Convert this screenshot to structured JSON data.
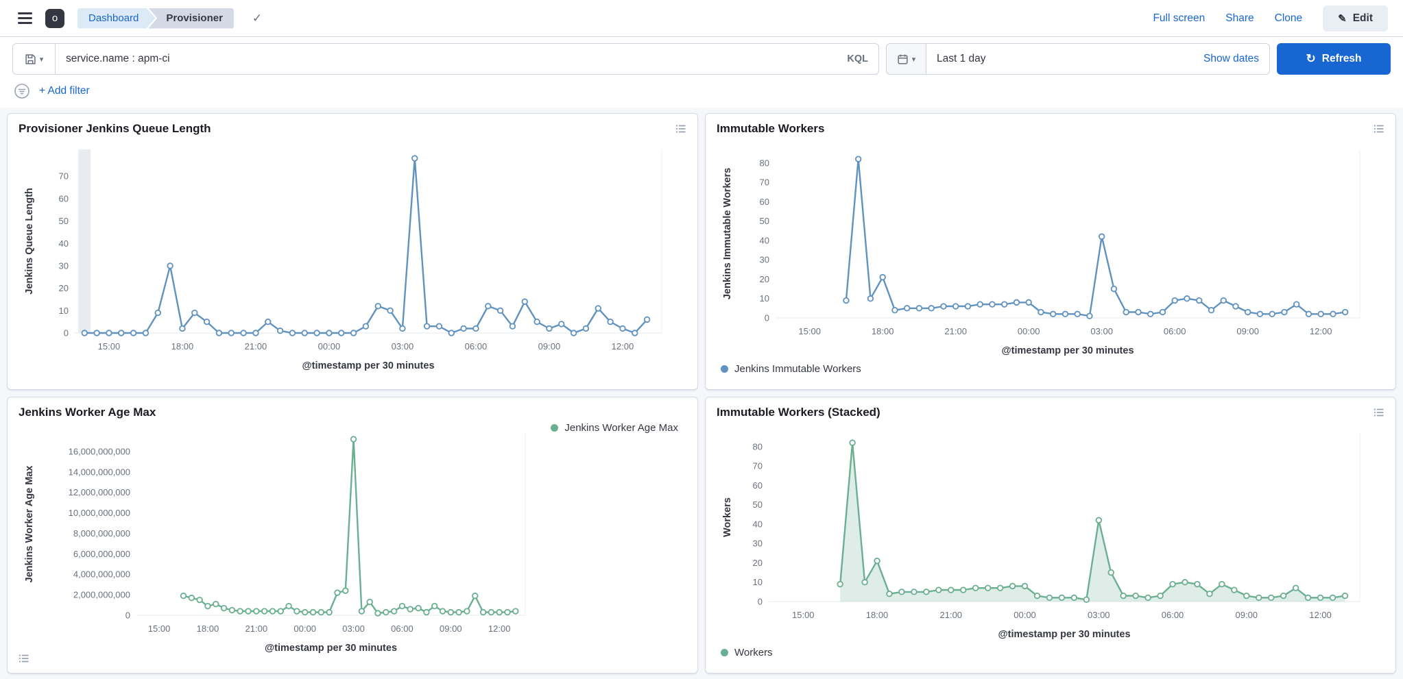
{
  "header": {
    "space_initial": "o",
    "breadcrumbs": [
      {
        "label": "Dashboard"
      },
      {
        "label": "Provisioner"
      }
    ],
    "actions": {
      "full_screen": "Full screen",
      "share": "Share",
      "clone": "Clone",
      "edit": "Edit"
    }
  },
  "query_bar": {
    "query": "service.name : apm-ci",
    "language": "KQL",
    "time_range": "Last 1 day",
    "show_dates_label": "Show dates",
    "refresh_label": "Refresh"
  },
  "filter_bar": {
    "add_filter_label": "+ Add filter"
  },
  "colors": {
    "primary": "#1866D1",
    "chart_blue": "#6092C0",
    "chart_green": "#6BAF92"
  },
  "chart_data": [
    {
      "type": "line",
      "title": "Provisioner Jenkins Queue Length",
      "xlabel": "@timestamp per 30 minutes",
      "ylabel": "Jenkins Queue Length",
      "color": "#6092C0",
      "fill": false,
      "partial_band": true,
      "legend": null,
      "legend_position": null,
      "ylim": [
        0,
        82
      ],
      "yticks": [
        0,
        10,
        20,
        30,
        40,
        50,
        60,
        70
      ],
      "x_start": "14:00",
      "x_interval_minutes": 30,
      "xtick_labels": [
        "15:00",
        "18:00",
        "21:00",
        "00:00",
        "03:00",
        "06:00",
        "09:00",
        "12:00"
      ],
      "xtick_indices": [
        2,
        8,
        14,
        20,
        26,
        32,
        38,
        44
      ],
      "values": [
        0,
        0,
        0,
        0,
        0,
        0,
        9,
        30,
        2,
        9,
        5,
        0,
        0,
        0,
        0,
        5,
        1,
        0,
        0,
        0,
        0,
        0,
        0,
        3,
        12,
        10,
        2,
        78,
        3,
        3,
        0,
        2,
        2,
        12,
        10,
        3,
        14,
        5,
        2,
        4,
        0,
        2,
        11,
        5,
        2,
        0,
        6
      ]
    },
    {
      "type": "line",
      "title": "Immutable Workers",
      "xlabel": "@timestamp per 30 minutes",
      "ylabel": "Jenkins Immutable Workers",
      "color": "#6092C0",
      "fill": false,
      "partial_band": false,
      "legend": "Jenkins Immutable Workers",
      "legend_position": "bottom-left",
      "ylim": [
        0,
        87
      ],
      "yticks": [
        0,
        10,
        20,
        30,
        40,
        50,
        60,
        70,
        80
      ],
      "x_start": "14:00",
      "x_interval_minutes": 30,
      "xtick_labels": [
        "15:00",
        "18:00",
        "21:00",
        "00:00",
        "03:00",
        "06:00",
        "09:00",
        "12:00"
      ],
      "xtick_indices": [
        2,
        8,
        14,
        20,
        26,
        32,
        38,
        44
      ],
      "values": [
        null,
        null,
        null,
        null,
        null,
        9,
        82,
        10,
        21,
        4,
        5,
        5,
        5,
        6,
        6,
        6,
        7,
        7,
        7,
        8,
        8,
        3,
        2,
        2,
        2,
        1,
        42,
        15,
        3,
        3,
        2,
        3,
        9,
        10,
        9,
        4,
        9,
        6,
        3,
        2,
        2,
        3,
        7,
        2,
        2,
        2,
        3
      ]
    },
    {
      "type": "line",
      "title": "Jenkins Worker Age Max",
      "xlabel": "@timestamp per 30 minutes",
      "ylabel": "Jenkins Worker Age Max",
      "color": "#6BAF92",
      "fill": false,
      "partial_band": false,
      "legend": "Jenkins Worker Age Max",
      "legend_position": "top-right",
      "ylim": [
        0,
        17800000000
      ],
      "yticks": [
        0,
        2000000000,
        4000000000,
        6000000000,
        8000000000,
        10000000000,
        12000000000,
        14000000000,
        16000000000
      ],
      "x_start": "14:00",
      "x_interval_minutes": 30,
      "xtick_labels": [
        "15:00",
        "18:00",
        "21:00",
        "00:00",
        "03:00",
        "06:00",
        "09:00",
        "12:00"
      ],
      "xtick_indices": [
        2,
        8,
        14,
        20,
        26,
        32,
        38,
        44
      ],
      "values": [
        null,
        null,
        null,
        null,
        null,
        1900000000,
        1700000000,
        1500000000,
        900000000,
        1100000000,
        700000000,
        500000000,
        400000000,
        400000000,
        400000000,
        400000000,
        400000000,
        400000000,
        900000000,
        400000000,
        300000000,
        300000000,
        300000000,
        300000000,
        2200000000,
        2400000000,
        17200000000,
        400000000,
        1300000000,
        200000000,
        300000000,
        400000000,
        900000000,
        600000000,
        700000000,
        300000000,
        900000000,
        400000000,
        300000000,
        300000000,
        400000000,
        1900000000,
        300000000,
        300000000,
        300000000,
        300000000,
        400000000
      ]
    },
    {
      "type": "area",
      "title": "Immutable Workers (Stacked)",
      "xlabel": "@timestamp per 30 minutes",
      "ylabel": "Workers",
      "color": "#6BAF92",
      "fill": true,
      "partial_band": false,
      "legend": "Workers",
      "legend_position": "bottom-left",
      "ylim": [
        0,
        87
      ],
      "yticks": [
        0,
        10,
        20,
        30,
        40,
        50,
        60,
        70,
        80
      ],
      "x_start": "14:00",
      "x_interval_minutes": 30,
      "xtick_labels": [
        "15:00",
        "18:00",
        "21:00",
        "00:00",
        "03:00",
        "06:00",
        "09:00",
        "12:00"
      ],
      "xtick_indices": [
        2,
        8,
        14,
        20,
        26,
        32,
        38,
        44
      ],
      "values": [
        null,
        null,
        null,
        null,
        null,
        9,
        82,
        10,
        21,
        4,
        5,
        5,
        5,
        6,
        6,
        6,
        7,
        7,
        7,
        8,
        8,
        3,
        2,
        2,
        2,
        1,
        42,
        15,
        3,
        3,
        2,
        3,
        9,
        10,
        9,
        4,
        9,
        6,
        3,
        2,
        2,
        3,
        7,
        2,
        2,
        2,
        3
      ]
    }
  ]
}
